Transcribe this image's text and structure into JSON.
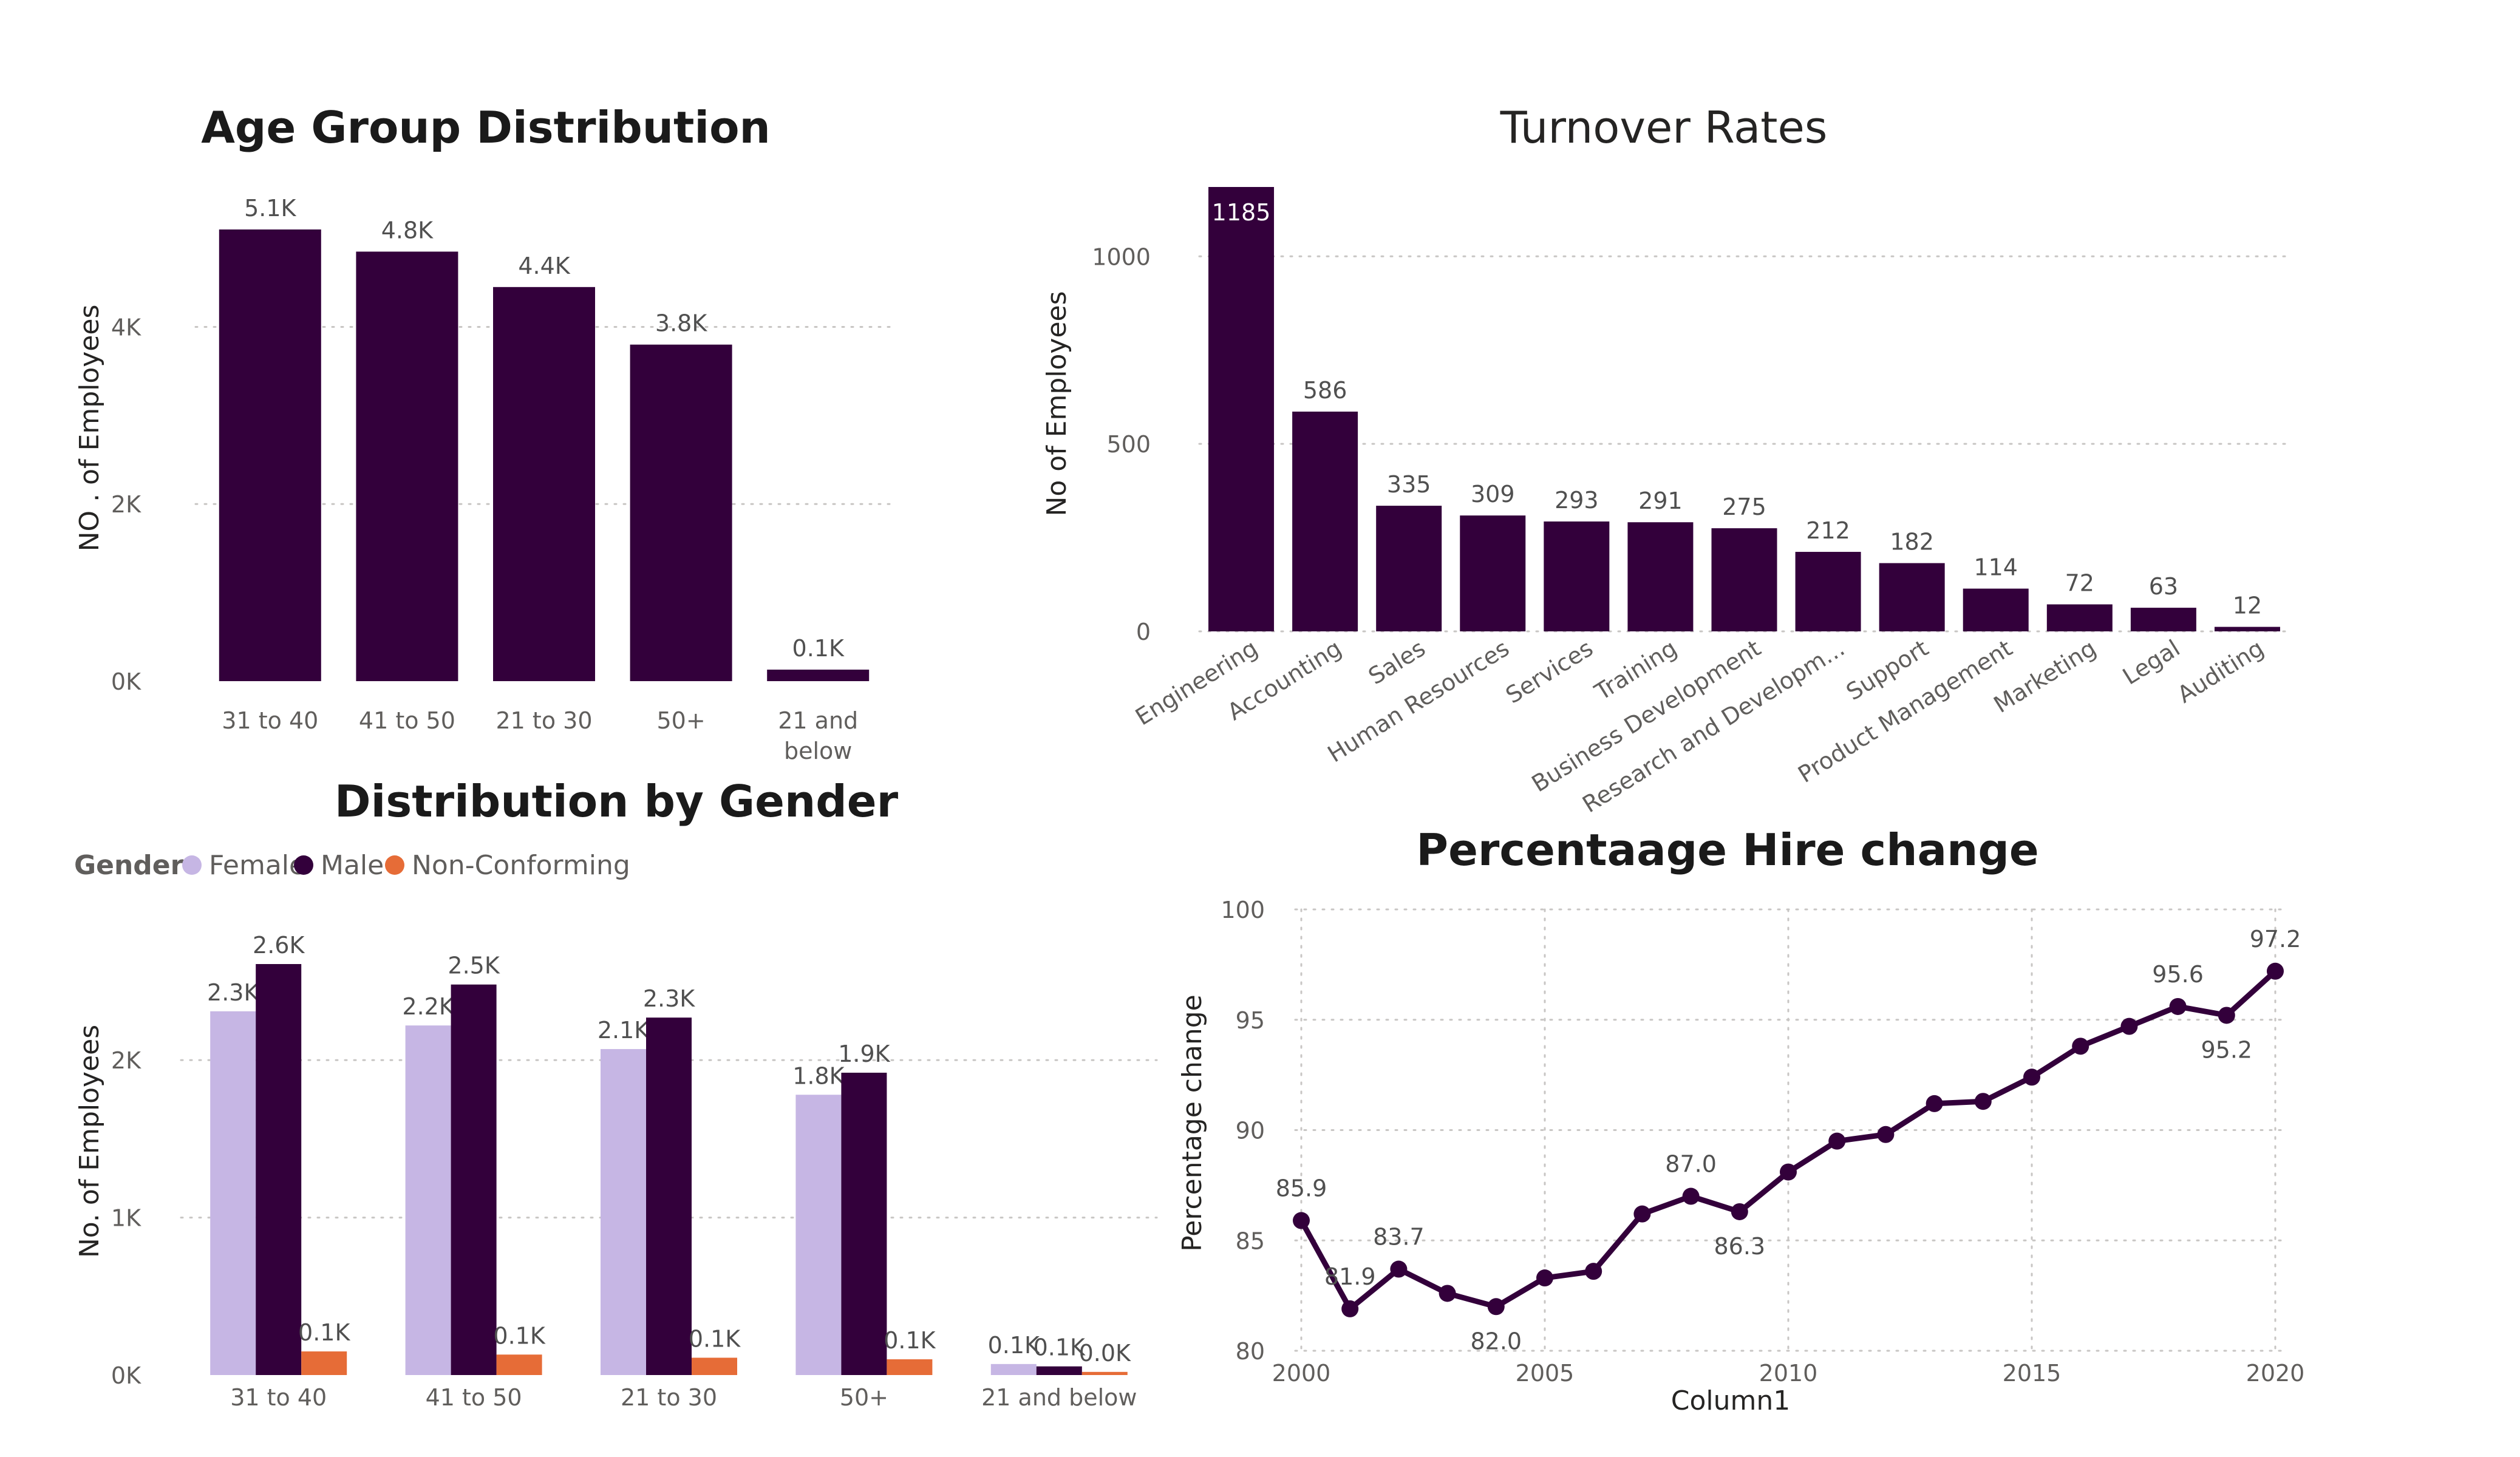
{
  "colors": {
    "primary": "#33003b",
    "female": "#c6b6e4",
    "male": "#33003b",
    "non_conforming": "#e66c37"
  },
  "chart_data": [
    {
      "id": "age",
      "type": "bar",
      "title": "Age Group Distribution",
      "ylabel": "NO . of Employees",
      "xlabel": "",
      "categories": [
        "31 to 40",
        "41 to 50",
        "21 to 30",
        "50+",
        "21 and below"
      ],
      "values": [
        5100,
        4850,
        4450,
        3800,
        130
      ],
      "data_labels": [
        "5.1K",
        "4.8K",
        "4.4K",
        "3.8K",
        "0.1K"
      ],
      "yticks": [
        0,
        2000,
        4000
      ],
      "ytick_labels": [
        "0K",
        "2K",
        "4K"
      ],
      "ylim": [
        0,
        5100
      ],
      "grid": true
    },
    {
      "id": "turnover",
      "type": "bar",
      "title": "Turnover Rates",
      "ylabel": "No of Employees",
      "xlabel": "",
      "categories": [
        "Engineering",
        "Accounting",
        "Sales",
        "Human Resources",
        "Services",
        "Training",
        "Business Development",
        "Research and Developm...",
        "Support",
        "Product Management",
        "Marketing",
        "Legal",
        "Auditing"
      ],
      "values": [
        1185,
        586,
        335,
        309,
        293,
        291,
        275,
        212,
        182,
        114,
        72,
        63,
        12
      ],
      "data_labels": [
        "1185",
        "586",
        "335",
        "309",
        "293",
        "291",
        "275",
        "212",
        "182",
        "114",
        "72",
        "63",
        "12"
      ],
      "yticks": [
        0,
        500,
        1000
      ],
      "ytick_labels": [
        "0",
        "500",
        "1000"
      ],
      "ylim": [
        0,
        1185
      ],
      "grid": true
    },
    {
      "id": "gender",
      "type": "bar",
      "title": "Distribution by Gender",
      "ylabel": "No. of Employees",
      "xlabel": "",
      "legend_title": "Gender",
      "legend_position": "top-left",
      "categories": [
        "31 to 40",
        "41 to 50",
        "21 to 30",
        "50+",
        "21 and below"
      ],
      "series": [
        {
          "name": "Female",
          "values": [
            2310,
            2220,
            2070,
            1780,
            70
          ],
          "data_labels": [
            "2.3K",
            "2.2K",
            "2.1K",
            "1.8K",
            "0.1K"
          ]
        },
        {
          "name": "Male",
          "values": [
            2610,
            2480,
            2270,
            1920,
            55
          ],
          "data_labels": [
            "2.6K",
            "2.5K",
            "2.3K",
            "1.9K",
            "0.1K"
          ]
        },
        {
          "name": "Non-Conforming",
          "values": [
            150,
            130,
            110,
            100,
            20
          ],
          "data_labels": [
            "0.1K",
            "0.1K",
            "0.1K",
            "0.1K",
            "0.0K"
          ]
        }
      ],
      "yticks": [
        0,
        1000,
        2000
      ],
      "ytick_labels": [
        "0K",
        "1K",
        "2K"
      ],
      "ylim": [
        0,
        2610
      ],
      "grid": true
    },
    {
      "id": "hire",
      "type": "line",
      "title": "Percentaage Hire change",
      "ylabel": "Percentage change",
      "xlabel": "Column1",
      "x": [
        2000,
        2001,
        2002,
        2003,
        2004,
        2005,
        2006,
        2007,
        2008,
        2009,
        2010,
        2011,
        2012,
        2013,
        2014,
        2015,
        2016,
        2017,
        2018,
        2019,
        2020
      ],
      "y": [
        85.9,
        81.9,
        83.7,
        82.6,
        82.0,
        83.3,
        83.6,
        86.2,
        87.0,
        86.3,
        88.1,
        89.5,
        89.8,
        91.2,
        91.3,
        92.4,
        93.8,
        94.7,
        95.6,
        95.2,
        97.2
      ],
      "labeled_points": [
        {
          "x": 2000,
          "y": 85.9,
          "label": "85.9",
          "pos": "above"
        },
        {
          "x": 2001,
          "y": 81.9,
          "label": "81.9",
          "pos": "above"
        },
        {
          "x": 2002,
          "y": 83.7,
          "label": "83.7",
          "pos": "above"
        },
        {
          "x": 2004,
          "y": 82.0,
          "label": "82.0",
          "pos": "below"
        },
        {
          "x": 2008,
          "y": 87.0,
          "label": "87.0",
          "pos": "above"
        },
        {
          "x": 2009,
          "y": 86.3,
          "label": "86.3",
          "pos": "below"
        },
        {
          "x": 2018,
          "y": 95.6,
          "label": "95.6",
          "pos": "above"
        },
        {
          "x": 2019,
          "y": 95.2,
          "label": "95.2",
          "pos": "below"
        },
        {
          "x": 2020,
          "y": 97.2,
          "label": "97.2",
          "pos": "above"
        }
      ],
      "xticks": [
        2000,
        2005,
        2010,
        2015,
        2020
      ],
      "yticks": [
        80,
        85,
        90,
        95,
        100
      ],
      "xlim": [
        2000,
        2020
      ],
      "ylim": [
        80,
        100
      ],
      "grid": true
    }
  ]
}
